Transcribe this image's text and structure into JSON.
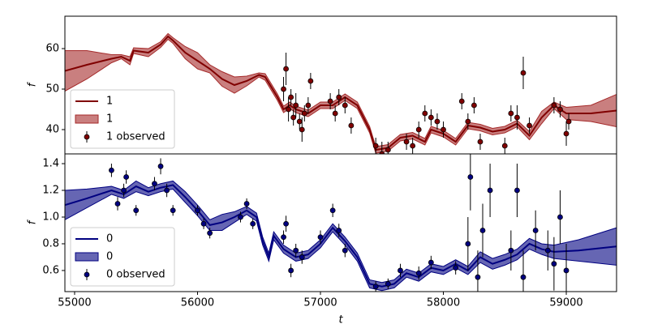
{
  "chart_data": [
    {
      "type": "line",
      "ylabel": "f",
      "xlim": [
        54921,
        59409
      ],
      "ylim": [
        34,
        68
      ],
      "yticks": [
        40,
        50,
        60
      ],
      "legend": "lower left",
      "series": [
        {
          "kind": "line",
          "name": "1",
          "color": "#800000",
          "x": [
            54921,
            55100,
            55300,
            55380,
            55450,
            55480,
            55600,
            55700,
            55760,
            55800,
            55900,
            56000,
            56100,
            56200,
            56300,
            56400,
            56500,
            56550,
            56650,
            56700,
            56750,
            56800,
            56900,
            57000,
            57100,
            57200,
            57300,
            57400,
            57450,
            57550,
            57650,
            57750,
            57850,
            57900,
            58000,
            58100,
            58200,
            58300,
            58400,
            58500,
            58600,
            58700,
            58800,
            58900,
            59000,
            59200,
            59409
          ],
          "values": [
            54.5,
            56,
            57.5,
            58,
            57,
            59.5,
            59,
            61,
            63,
            62,
            59,
            57,
            55,
            52.5,
            51,
            52,
            53.5,
            53,
            48,
            45,
            46,
            45,
            44,
            46,
            46,
            48,
            46,
            40,
            35,
            35.5,
            38,
            38.5,
            37,
            40,
            39,
            37,
            41,
            40.5,
            39.5,
            40,
            41.5,
            38.5,
            43,
            46,
            44,
            44,
            44.7
          ]
        },
        {
          "kind": "band",
          "name": "1",
          "color": "#a52a2a",
          "lower": [
            49.5,
            52.5,
            56.5,
            57.5,
            56,
            58.8,
            58,
            60.3,
            62.3,
            61.3,
            57.5,
            55,
            54,
            50.7,
            49,
            50.8,
            53,
            52.2,
            47.2,
            44.2,
            45.2,
            44.2,
            43.2,
            45.2,
            45.2,
            47.2,
            45.2,
            39.2,
            34.2,
            34.7,
            37.2,
            37.7,
            36.2,
            39.2,
            38.2,
            36.2,
            40.2,
            39.7,
            38.7,
            39.2,
            40.7,
            37.5,
            41.5,
            45.2,
            42.5,
            42,
            40.7
          ],
          "upper": [
            59.5,
            59.5,
            58.5,
            58.5,
            58,
            60.2,
            60,
            61.7,
            63.7,
            62.7,
            60.5,
            59,
            56,
            54.3,
            53,
            53.2,
            54,
            53.8,
            48.8,
            45.8,
            46.8,
            45.8,
            44.8,
            46.8,
            46.8,
            48.8,
            46.8,
            40.8,
            35.8,
            36.3,
            38.8,
            39.3,
            37.8,
            40.8,
            39.8,
            37.8,
            41.8,
            41.3,
            40.3,
            40.8,
            42.3,
            39.5,
            44.5,
            46.8,
            45.5,
            46,
            48.7
          ]
        },
        {
          "kind": "errorbar",
          "name": "1 observed",
          "color": "#800000",
          "x": [
            56700,
            56720,
            56740,
            56760,
            56780,
            56800,
            56830,
            56850,
            56870,
            56900,
            56920,
            57080,
            57120,
            57150,
            57200,
            57250,
            57450,
            57500,
            57550,
            57700,
            57750,
            57800,
            57850,
            57900,
            57950,
            58000,
            58150,
            58200,
            58250,
            58300,
            58500,
            58550,
            58600,
            58650,
            58700,
            58900,
            58950,
            59000,
            59020
          ],
          "values": [
            50,
            55,
            45,
            48,
            43,
            46,
            42,
            40,
            44,
            46,
            52,
            47,
            44,
            48,
            46,
            41,
            36,
            34,
            35,
            37,
            36,
            40,
            44,
            43,
            42,
            40,
            47,
            42,
            46,
            37,
            36,
            44,
            43,
            54,
            41,
            46,
            45,
            39,
            42
          ],
          "errors": [
            3,
            4,
            3,
            2,
            2,
            3,
            2,
            3,
            2,
            2,
            2,
            2,
            2,
            2,
            2,
            2,
            2,
            3,
            2,
            2,
            2,
            2,
            2,
            2,
            2,
            2,
            2,
            2,
            2,
            2,
            2,
            2,
            3,
            4,
            2,
            2,
            2,
            3,
            2
          ]
        }
      ]
    },
    {
      "type": "line",
      "ylabel": "f",
      "xlabel": "t",
      "xlim": [
        54921,
        59409
      ],
      "ylim": [
        0.442,
        1.473
      ],
      "xticks": [
        55000,
        56000,
        57000,
        58000,
        59000
      ],
      "yticks": [
        0.6,
        0.8,
        {
          "value": 1,
          "label": "1.0"
        },
        1.2,
        1.4
      ],
      "legend": "lower left",
      "series": [
        {
          "kind": "line",
          "name": "0",
          "color": "#000080",
          "x": [
            54921,
            55100,
            55300,
            55400,
            55500,
            55600,
            55700,
            55800,
            55900,
            56000,
            56100,
            56200,
            56300,
            56400,
            56480,
            56530,
            56580,
            56620,
            56700,
            56800,
            56900,
            57000,
            57100,
            57200,
            57300,
            57400,
            57500,
            57600,
            57700,
            57800,
            57900,
            58000,
            58100,
            58200,
            58300,
            58400,
            58500,
            58600,
            58700,
            58800,
            58900,
            59100,
            59409
          ],
          "values": [
            1.09,
            1.14,
            1.2,
            1.17,
            1.23,
            1.19,
            1.22,
            1.24,
            1.15,
            1.05,
            0.94,
            0.96,
            1.0,
            1.05,
            1.0,
            0.82,
            0.7,
            0.86,
            0.76,
            0.7,
            0.72,
            0.8,
            0.92,
            0.82,
            0.7,
            0.5,
            0.48,
            0.5,
            0.58,
            0.55,
            0.62,
            0.6,
            0.65,
            0.6,
            0.7,
            0.65,
            0.68,
            0.72,
            0.8,
            0.76,
            0.74,
            0.75,
            0.78
          ]
        },
        {
          "kind": "band",
          "name": "0",
          "color": "#000080",
          "lower": [
            0.98,
            1.07,
            1.17,
            1.14,
            1.19,
            1.16,
            1.19,
            1.21,
            1.11,
            1.01,
            0.9,
            0.9,
            0.96,
            1.02,
            0.97,
            0.79,
            0.67,
            0.83,
            0.73,
            0.67,
            0.69,
            0.77,
            0.89,
            0.79,
            0.67,
            0.47,
            0.45,
            0.47,
            0.55,
            0.52,
            0.59,
            0.57,
            0.62,
            0.57,
            0.66,
            0.61,
            0.64,
            0.68,
            0.76,
            0.72,
            0.69,
            0.67,
            0.64
          ],
          "upper": [
            1.2,
            1.21,
            1.23,
            1.2,
            1.27,
            1.22,
            1.25,
            1.27,
            1.19,
            1.09,
            0.98,
            1.02,
            1.04,
            1.08,
            1.03,
            0.85,
            0.73,
            0.89,
            0.79,
            0.73,
            0.75,
            0.83,
            0.95,
            0.85,
            0.73,
            0.53,
            0.51,
            0.53,
            0.61,
            0.58,
            0.65,
            0.63,
            0.68,
            0.63,
            0.74,
            0.69,
            0.72,
            0.76,
            0.84,
            0.8,
            0.79,
            0.83,
            0.92
          ]
        },
        {
          "kind": "errorbar",
          "name": "0 observed",
          "color": "#000080",
          "x": [
            55300,
            55350,
            55400,
            55420,
            55500,
            55650,
            55700,
            55750,
            55800,
            56000,
            56050,
            56100,
            56350,
            56400,
            56450,
            56700,
            56720,
            56760,
            56800,
            56850,
            57000,
            57100,
            57150,
            57200,
            57450,
            57550,
            57650,
            57800,
            57900,
            58100,
            58200,
            58220,
            58280,
            58320,
            58380,
            58550,
            58600,
            58650,
            58750,
            58850,
            58900,
            58950,
            59000
          ],
          "values": [
            1.35,
            1.1,
            1.2,
            1.3,
            1.05,
            1.25,
            1.38,
            1.2,
            1.05,
            1.05,
            0.95,
            0.88,
            1.0,
            1.1,
            0.95,
            0.85,
            0.95,
            0.6,
            0.75,
            0.7,
            0.85,
            1.05,
            0.9,
            0.75,
            0.48,
            0.5,
            0.6,
            0.58,
            0.66,
            0.62,
            0.8,
            1.3,
            0.55,
            0.9,
            1.2,
            0.75,
            1.2,
            0.55,
            0.9,
            0.75,
            0.65,
            1.0,
            0.6
          ],
          "errors": [
            0.05,
            0.05,
            0.05,
            0.05,
            0.04,
            0.05,
            0.06,
            0.05,
            0.04,
            0.04,
            0.04,
            0.04,
            0.04,
            0.04,
            0.04,
            0.05,
            0.06,
            0.05,
            0.05,
            0.05,
            0.05,
            0.05,
            0.05,
            0.05,
            0.04,
            0.04,
            0.05,
            0.05,
            0.05,
            0.05,
            0.2,
            0.25,
            0.2,
            0.2,
            0.2,
            0.15,
            0.2,
            0.2,
            0.15,
            0.15,
            0.2,
            0.2,
            0.2
          ]
        }
      ]
    }
  ]
}
